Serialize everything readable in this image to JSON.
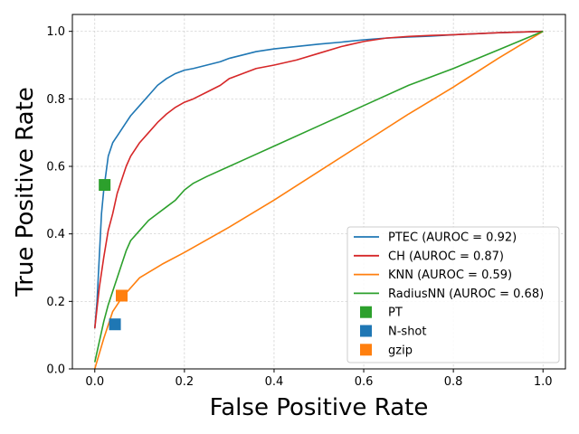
{
  "chart_data": {
    "type": "line",
    "xlabel": "False Positive Rate",
    "ylabel": "True Positive Rate",
    "xlim": [
      -0.05,
      1.05
    ],
    "ylim": [
      0.0,
      1.05
    ],
    "xticks": [
      "0.0",
      "0.2",
      "0.4",
      "0.6",
      "0.8",
      "1.0"
    ],
    "yticks": [
      "0.0",
      "0.2",
      "0.4",
      "0.6",
      "0.8",
      "1.0"
    ],
    "grid": true,
    "legend_position": "lower right",
    "series": [
      {
        "name": "PTEC (AUROC = 0.92)",
        "color": "#1f77b4",
        "x": [
          0.0,
          0.005,
          0.01,
          0.015,
          0.02,
          0.025,
          0.03,
          0.04,
          0.05,
          0.06,
          0.07,
          0.08,
          0.1,
          0.12,
          0.14,
          0.16,
          0.18,
          0.2,
          0.22,
          0.25,
          0.28,
          0.3,
          0.33,
          0.36,
          0.4,
          0.45,
          0.5,
          0.55,
          0.6,
          0.65,
          0.7,
          0.75,
          0.8,
          0.85,
          0.9,
          0.95,
          1.0
        ],
        "y": [
          0.12,
          0.2,
          0.33,
          0.46,
          0.53,
          0.58,
          0.63,
          0.67,
          0.69,
          0.71,
          0.73,
          0.75,
          0.78,
          0.81,
          0.84,
          0.86,
          0.875,
          0.885,
          0.89,
          0.9,
          0.91,
          0.92,
          0.93,
          0.94,
          0.948,
          0.955,
          0.962,
          0.968,
          0.975,
          0.98,
          0.983,
          0.986,
          0.99,
          0.993,
          0.996,
          0.998,
          1.0
        ]
      },
      {
        "name": "CH (AUROC = 0.87)",
        "color": "#d62728",
        "x": [
          0.0,
          0.005,
          0.01,
          0.02,
          0.03,
          0.04,
          0.05,
          0.06,
          0.07,
          0.08,
          0.1,
          0.12,
          0.14,
          0.16,
          0.18,
          0.2,
          0.22,
          0.25,
          0.28,
          0.3,
          0.33,
          0.36,
          0.4,
          0.45,
          0.5,
          0.55,
          0.6,
          0.65,
          0.7,
          0.75,
          0.8,
          0.85,
          0.9,
          0.95,
          1.0
        ],
        "y": [
          0.12,
          0.18,
          0.24,
          0.33,
          0.41,
          0.46,
          0.52,
          0.56,
          0.6,
          0.63,
          0.67,
          0.7,
          0.73,
          0.755,
          0.775,
          0.79,
          0.8,
          0.82,
          0.84,
          0.86,
          0.875,
          0.89,
          0.9,
          0.915,
          0.935,
          0.955,
          0.97,
          0.98,
          0.985,
          0.988,
          0.99,
          0.993,
          0.996,
          0.998,
          1.0
        ]
      },
      {
        "name": "KNN (AUROC = 0.59)",
        "color": "#ff7f0e",
        "x": [
          0.0,
          0.02,
          0.04,
          0.06,
          0.07,
          0.1,
          0.15,
          0.2,
          0.3,
          0.4,
          0.5,
          0.6,
          0.7,
          0.8,
          0.9,
          1.0
        ],
        "y": [
          0.0,
          0.09,
          0.17,
          0.21,
          0.225,
          0.27,
          0.31,
          0.345,
          0.42,
          0.5,
          0.585,
          0.67,
          0.755,
          0.835,
          0.92,
          1.0
        ]
      },
      {
        "name": "RadiusNN (AUROC = 0.68)",
        "color": "#2ca02c",
        "x": [
          0.0,
          0.01,
          0.02,
          0.03,
          0.04,
          0.05,
          0.06,
          0.07,
          0.08,
          0.1,
          0.12,
          0.14,
          0.16,
          0.18,
          0.2,
          0.22,
          0.25,
          0.3,
          0.35,
          0.4,
          0.5,
          0.6,
          0.7,
          0.8,
          0.9,
          1.0
        ],
        "y": [
          0.02,
          0.08,
          0.14,
          0.19,
          0.23,
          0.27,
          0.31,
          0.35,
          0.38,
          0.41,
          0.44,
          0.46,
          0.48,
          0.5,
          0.53,
          0.55,
          0.57,
          0.6,
          0.63,
          0.66,
          0.72,
          0.78,
          0.84,
          0.89,
          0.945,
          1.0
        ]
      }
    ],
    "points": [
      {
        "name": "PT",
        "color": "#2ca02c",
        "x": 0.022,
        "y": 0.545
      },
      {
        "name": "N-shot",
        "color": "#1f77b4",
        "x": 0.045,
        "y": 0.132
      },
      {
        "name": "gzip",
        "color": "#ff7f0e",
        "x": 0.06,
        "y": 0.217
      }
    ]
  }
}
